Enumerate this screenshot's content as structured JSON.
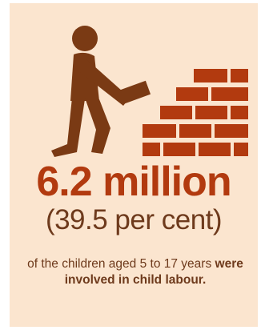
{
  "colors": {
    "background": "#fbe5cf",
    "accent": "#b23a0f",
    "figure": "#7a3a14",
    "text": "#6e3a1c"
  },
  "illustration": {
    "icon": "worker-building-brick-wall-icon"
  },
  "headline": {
    "number": "6.2 million",
    "percent": "(39.5 per cent)"
  },
  "description": {
    "part1": "of the children aged 5 to 17 years ",
    "part2": "were involved in child labour."
  }
}
